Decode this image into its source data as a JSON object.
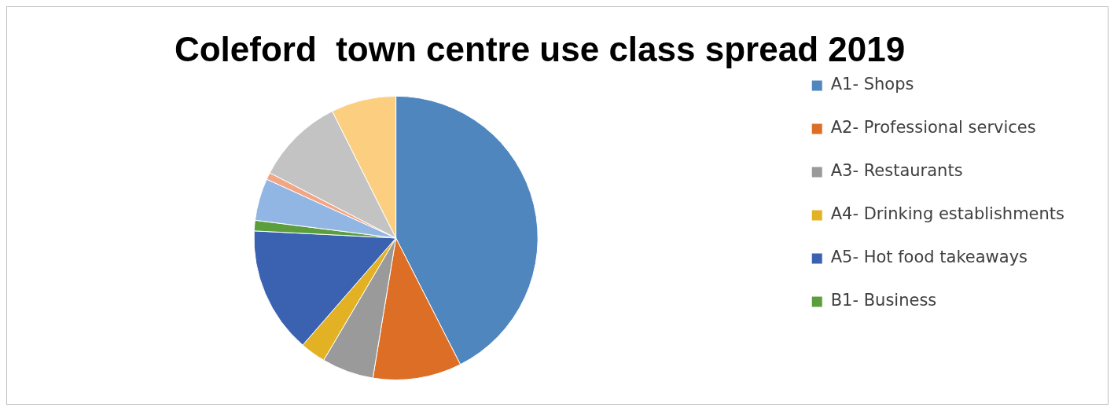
{
  "chart_data": {
    "type": "pie",
    "title": "Coleford  town centre use class spread 2019",
    "categories": [
      "A1- Shops",
      "A2- Professional services",
      "A3- Restaurants",
      "A4- Drinking establishments",
      "A5- Hot food takeaways",
      "B1- Business",
      null,
      null,
      null,
      null
    ],
    "values": [
      42.5,
      10.1,
      5.9,
      2.9,
      14.4,
      1.2,
      4.8,
      0.8,
      10,
      7.4
    ],
    "colors": [
      "#4f86be",
      "#dd6e26",
      "#9a9a9a",
      "#e3b124",
      "#3b62b0",
      "#5b9e3e",
      "#92b6e4",
      "#f3a685",
      "#c3c3c3",
      "#fccf80"
    ],
    "legend": "right"
  }
}
